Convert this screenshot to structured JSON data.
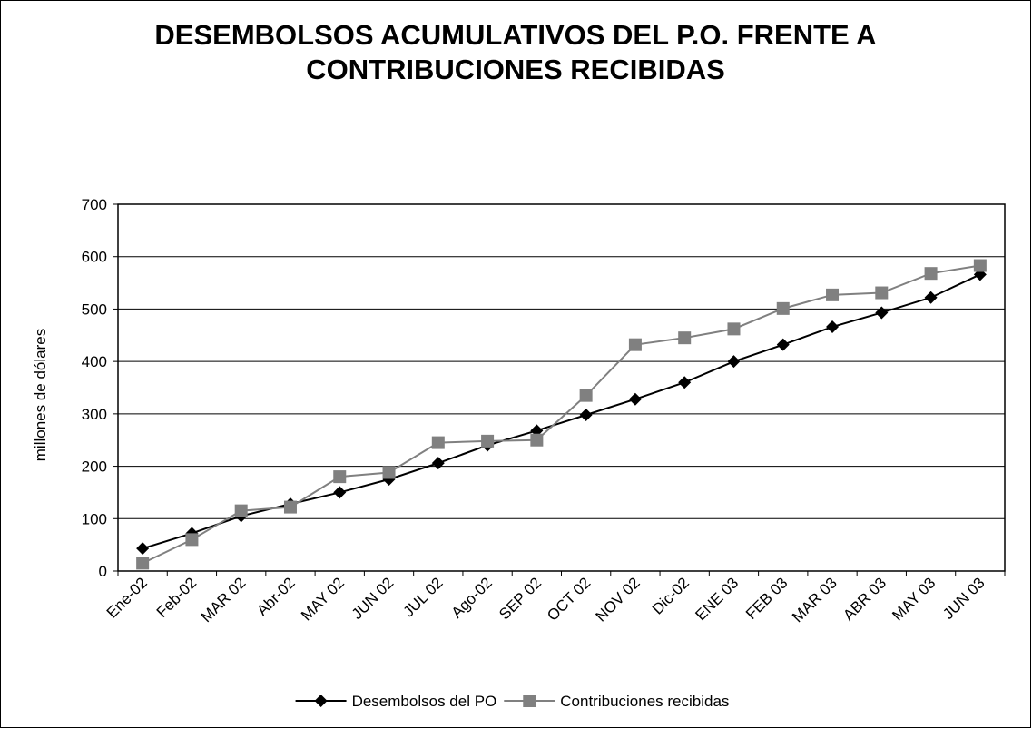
{
  "chart_data": {
    "type": "line",
    "title": "DESEMBOLSOS ACUMULATIVOS DEL P.O. FRENTE A CONTRIBUCIONES RECIBIDAS",
    "y_label": "millones de dólares",
    "categories": [
      "Ene-02",
      "Feb-02",
      "MAR 02",
      "Abr-02",
      "MAY 02",
      "JUN 02",
      "JUL 02",
      "Ago-02",
      "SEP 02",
      "OCT 02",
      "NOV 02",
      "Dic-02",
      "ENE 03",
      "FEB 03",
      "MAR 03",
      "ABR 03",
      "MAY 03",
      "JUN 03"
    ],
    "series": [
      {
        "name": "Desembolsos del PO",
        "color": "#000000",
        "marker": "diamond",
        "values": [
          43,
          72,
          105,
          128,
          150,
          175,
          206,
          240,
          268,
          298,
          328,
          360,
          400,
          432,
          466,
          493,
          522,
          566
        ]
      },
      {
        "name": "Contribuciones recibidas",
        "color": "#808080",
        "marker": "square",
        "values": [
          15,
          60,
          115,
          122,
          180,
          188,
          245,
          248,
          250,
          335,
          432,
          445,
          462,
          501,
          527,
          531,
          568,
          583
        ]
      }
    ],
    "ylim": [
      0,
      700
    ],
    "yticks": [
      0,
      100,
      200,
      300,
      400,
      500,
      600,
      700
    ],
    "grid": true,
    "legend": "bottom"
  }
}
